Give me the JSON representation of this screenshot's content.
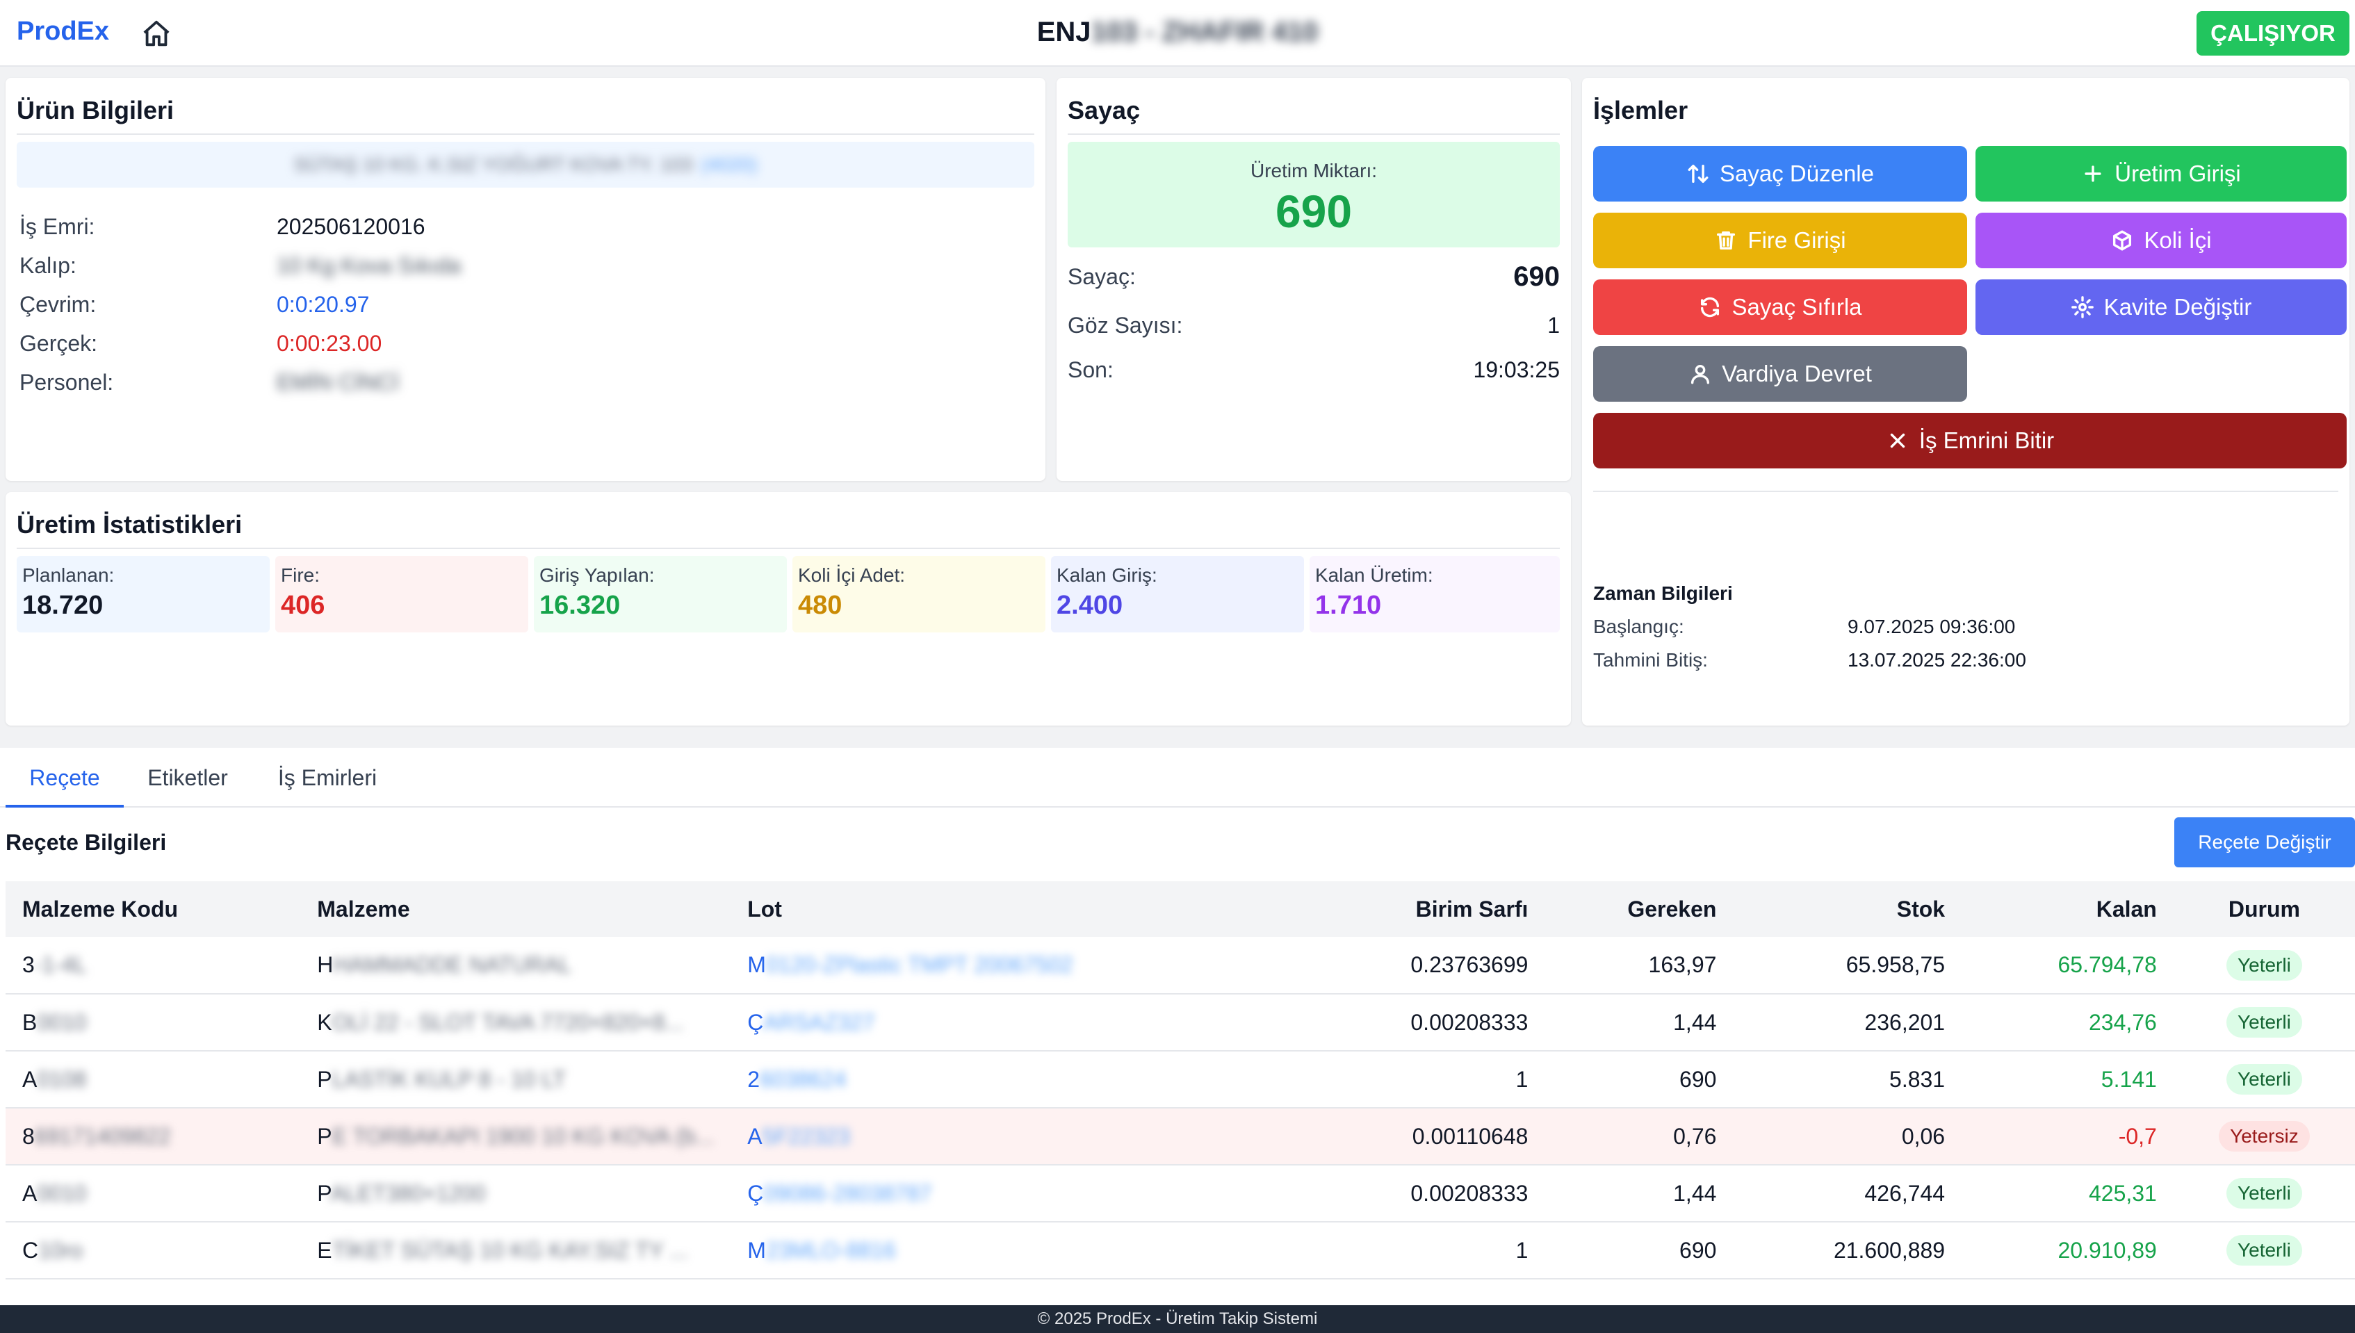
{
  "header": {
    "logo": "ProdEx",
    "machine_title_prefix": "ENJ",
    "machine_title_rest": "103 - ZHAFIR 410",
    "status": "ÇALIŞIYOR"
  },
  "product_info": {
    "title": "Ürün Bilgileri",
    "banner": "SÜTAŞ 10 KG. K.SIZ YOĞURT KOVA TY. 103",
    "banner_tag": "(4020)",
    "rows": [
      {
        "label": "İş Emri:",
        "value": "202506120016"
      },
      {
        "label": "Kalıp:",
        "value": "10 Kg Kova Sıkıda"
      },
      {
        "label": "Çevrim:",
        "value": "0:0:20.97"
      },
      {
        "label": "Gerçek:",
        "value": "0:00:23.00"
      },
      {
        "label": "Personel:",
        "value": "EMİN CİNCİ"
      }
    ]
  },
  "counter": {
    "title": "Sayaç",
    "production_label": "Üretim Miktarı:",
    "production_value": "690",
    "rows": [
      {
        "label": "Sayaç:",
        "value": "690"
      },
      {
        "label": "Göz Sayısı:",
        "value": "1"
      },
      {
        "label": "Son:",
        "value": "19:03:25"
      }
    ]
  },
  "operations": {
    "title": "İşlemler",
    "buttons": {
      "sayac_duzenle": "Sayaç Düzenle",
      "uretim_girisi": "Üretim Girişi",
      "fire_girisi": "Fire Girişi",
      "koli_ici": "Koli İçi",
      "sayac_sifirla": "Sayaç Sıfırla",
      "kavite_degistir": "Kavite Değiştir",
      "vardiya_devret": "Vardiya Devret",
      "is_emrini_bitir": "İş Emrini Bitir"
    },
    "colors": {
      "blue": "#3b82f6",
      "green": "#22c55e",
      "yellow": "#eab308",
      "purple": "#a855f7",
      "red": "#ef4444",
      "indigo": "#6366f1",
      "gray": "#6b7280",
      "darkred": "#991b1b"
    },
    "time_info": {
      "title": "Zaman Bilgileri",
      "start_label": "Başlangıç:",
      "start_value": "9.07.2025 09:36:00",
      "end_label": "Tahmini Bitiş:",
      "end_value": "13.07.2025 22:36:00"
    }
  },
  "stats": {
    "title": "Üretim İstatistikleri",
    "items": [
      {
        "label": "Planlanan:",
        "value": "18.720"
      },
      {
        "label": "Fire:",
        "value": "406"
      },
      {
        "label": "Giriş Yapılan:",
        "value": "16.320"
      },
      {
        "label": "Koli İçi Adet:",
        "value": "480"
      },
      {
        "label": "Kalan Giriş:",
        "value": "2.400"
      },
      {
        "label": "Kalan Üretim:",
        "value": "1.710"
      }
    ]
  },
  "tabs": [
    "Reçete",
    "Etiketler",
    "İş Emirleri"
  ],
  "recipe": {
    "title": "Reçete Bilgileri",
    "change_button": "Reçete Değiştir",
    "columns": [
      "Malzeme Kodu",
      "Malzeme",
      "Lot",
      "Birim Sarfı",
      "Gereken",
      "Stok",
      "Kalan",
      "Durum"
    ],
    "rows": [
      {
        "code_a": "3",
        "code_b": "-1-4L",
        "mat_a": "H",
        "mat_b": "HAMMADDE NATURAL",
        "lot_a": "M",
        "lot_b": "0120-ZPlastic TMPT 20067502",
        "unit": "0.23763699",
        "need": "163,97",
        "stock": "65.958,75",
        "left": "65.794,78",
        "status": "Yeterli"
      },
      {
        "code_a": "B",
        "code_b": "0010",
        "mat_a": "K",
        "mat_b": "OLİ 22 - SLOT TAVA 7720×820×8...",
        "lot_a": "Ç",
        "lot_b": "ARSAZ327",
        "unit": "0.00208333",
        "need": "1,44",
        "stock": "236,201",
        "left": "234,76",
        "status": "Yeterli"
      },
      {
        "code_a": "A",
        "code_b": "0108",
        "mat_a": "P",
        "mat_b": "LASTİK KULP 8 - 10 LT",
        "lot_a": "2",
        "lot_b": "6038624",
        "unit": "1",
        "need": "690",
        "stock": "5.831",
        "left": "5.141",
        "status": "Yeterli"
      },
      {
        "code_a": "8",
        "code_b": "69171409822",
        "mat_a": "P",
        "mat_b": "E TORBAKAPI 1900 10 KG KOVA (b...",
        "lot_a": "A",
        "lot_b": "5F22323",
        "unit": "0.00110648",
        "need": "0,76",
        "stock": "0,06",
        "left": "-0,7",
        "status": "Yetersiz"
      },
      {
        "code_a": "A",
        "code_b": "0010",
        "mat_a": "P",
        "mat_b": "ALET380×1200",
        "lot_a": "Ç",
        "lot_b": "09086-28038787",
        "unit": "0.00208333",
        "need": "1,44",
        "stock": "426,744",
        "left": "425,31",
        "status": "Yeterli"
      },
      {
        "code_a": "C",
        "code_b": "10ro",
        "mat_a": "E",
        "mat_b": "TİKET SÜTAŞ 10 KG KAY.SIZ TY ...",
        "lot_a": "M",
        "lot_b": "23MLO-8816",
        "unit": "1",
        "need": "690",
        "stock": "21.600,889",
        "left": "20.910,89",
        "status": "Yeterli"
      }
    ]
  },
  "footer": "© 2025 ProdEx - Üretim Takip Sistemi"
}
